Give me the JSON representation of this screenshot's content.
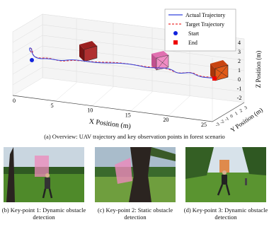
{
  "figure": {
    "plot": {
      "x_label": "X Position (m)",
      "y_label": "Y Position (m)",
      "z_label": "Z Position (m)",
      "x_ticks": [
        "0",
        "5",
        "10",
        "15",
        "20",
        "25"
      ],
      "y_ticks": [
        "-3",
        "-2",
        "-1",
        "0",
        "1",
        "2",
        "3"
      ],
      "z_ticks": [
        "-2",
        "-1",
        "0",
        "1",
        "2",
        "3",
        "4"
      ],
      "legend": [
        "Actual Trajectory",
        "Target Trajectory",
        "Start",
        "End"
      ]
    },
    "caption_a": "(a) Overview: UAV trajectory and key observation points in forest scenario",
    "panels": [
      {
        "caption": "(b) Key-point 1: Dynamic obstacle detection"
      },
      {
        "caption": "(c) Key-point 2: Static obstacle detection"
      },
      {
        "caption": "(d) Key-point 3: Dynamic obstacle detection"
      }
    ]
  }
}
